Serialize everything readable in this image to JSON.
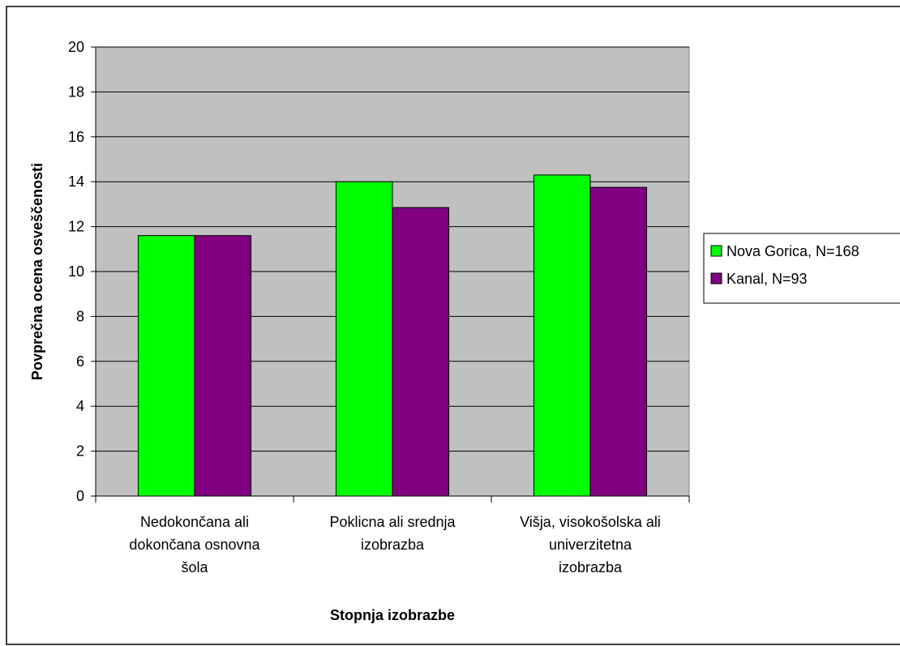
{
  "chart_data": {
    "type": "bar",
    "categories": [
      [
        "Nedokončana ali",
        "dokončana osnovna",
        "šola"
      ],
      [
        "Poklicna ali srednja",
        "izobrazba"
      ],
      [
        "Višja, visokošolska ali",
        "univerzitetna",
        "izobrazba"
      ]
    ],
    "series": [
      {
        "name": "Nova Gorica, N=168",
        "values": [
          11.6,
          14.0,
          14.3
        ],
        "color": "#00ff00"
      },
      {
        "name": "Kanal, N=93",
        "values": [
          11.6,
          12.85,
          13.75
        ],
        "color": "#800080"
      }
    ],
    "xlabel": "Stopnja izobrazbe",
    "ylabel": "Povprečna ocena osveščenosti",
    "ylim": [
      0,
      20
    ],
    "yticks": [
      0,
      2,
      4,
      6,
      8,
      10,
      12,
      14,
      16,
      18,
      20
    ],
    "grid": true,
    "legend_position": "right",
    "plot_background": "#c0c0c0"
  }
}
